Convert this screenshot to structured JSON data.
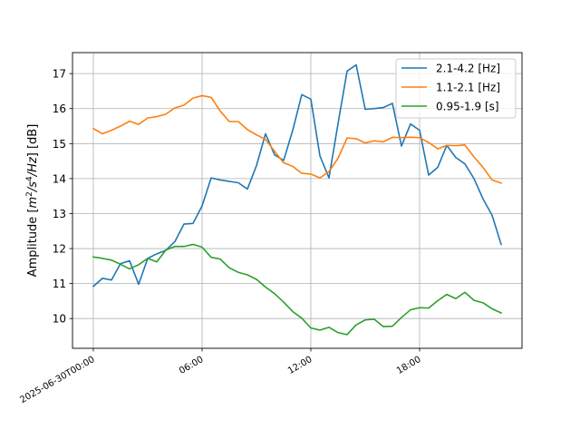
{
  "chart_data": {
    "type": "line",
    "xlabel": "",
    "ylabel_parts": {
      "prefix": "Amplitude [",
      "m": "m",
      "exp2": "2",
      "s": "/s",
      "exp4": "4",
      "hz": "/Hz",
      "suffix": "] [dB]"
    },
    "x_tick_labels": [
      "2025-06-30T00:00",
      "06:00",
      "12:00",
      "18:00"
    ],
    "x_tick_hours": [
      0,
      6,
      12,
      18
    ],
    "ylim": [
      9.15,
      17.6
    ],
    "y_ticks": [
      10,
      11,
      12,
      13,
      14,
      15,
      16,
      17
    ],
    "xlim_hours": [
      -1.15,
      23.65
    ],
    "grid": true,
    "legend_position": "upper right",
    "x_hours": [
      0,
      0.5,
      1,
      1.5,
      2,
      2.5,
      3,
      3.5,
      4,
      4.5,
      5,
      5.5,
      6,
      6.5,
      7,
      7.5,
      8,
      8.5,
      9,
      9.5,
      10,
      10.5,
      11,
      11.5,
      12,
      12.5,
      13,
      13.5,
      14,
      14.5,
      15,
      15.5,
      16,
      16.5,
      17,
      17.5,
      18,
      18.5,
      19,
      19.5,
      20,
      20.5,
      21,
      21.5,
      22,
      22.5
    ],
    "series": [
      {
        "name": "2.1-4.2 [Hz]",
        "color": "#1f77b4",
        "values": [
          10.92,
          11.15,
          11.1,
          11.57,
          11.65,
          10.98,
          11.72,
          11.85,
          11.95,
          12.2,
          12.7,
          12.72,
          13.22,
          14.02,
          13.96,
          13.92,
          13.88,
          13.7,
          14.37,
          15.28,
          14.68,
          14.52,
          15.38,
          16.4,
          16.27,
          14.65,
          14.02,
          15.57,
          17.07,
          17.25,
          15.98,
          16.0,
          16.03,
          16.15,
          14.93,
          15.56,
          15.38,
          14.1,
          14.32,
          14.95,
          14.6,
          14.42,
          14.0,
          13.42,
          12.95,
          12.12
        ]
      },
      {
        "name": "1.1-2.1 [Hz]",
        "color": "#ff7f0e",
        "values": [
          15.43,
          15.28,
          15.38,
          15.5,
          15.64,
          15.55,
          15.73,
          15.77,
          15.84,
          16.02,
          16.1,
          16.3,
          16.37,
          16.32,
          15.93,
          15.63,
          15.63,
          15.4,
          15.25,
          15.12,
          14.78,
          14.45,
          14.35,
          14.15,
          14.13,
          14.02,
          14.2,
          14.58,
          15.16,
          15.14,
          15.02,
          15.08,
          15.05,
          15.18,
          15.17,
          15.18,
          15.17,
          15.03,
          14.85,
          14.95,
          14.94,
          14.96,
          14.62,
          14.32,
          13.96,
          13.87
        ]
      },
      {
        "name": "0.95-1.9 [s]",
        "color": "#2ca02c",
        "values": [
          11.76,
          11.72,
          11.67,
          11.55,
          11.42,
          11.54,
          11.72,
          11.62,
          11.96,
          12.06,
          12.06,
          12.12,
          12.04,
          11.75,
          11.7,
          11.45,
          11.32,
          11.25,
          11.12,
          10.9,
          10.71,
          10.47,
          10.2,
          10.01,
          9.73,
          9.67,
          9.75,
          9.6,
          9.54,
          9.82,
          9.96,
          9.98,
          9.77,
          9.78,
          10.03,
          10.25,
          10.31,
          10.3,
          10.51,
          10.69,
          10.57,
          10.75,
          10.52,
          10.45,
          10.28,
          10.16
        ]
      }
    ]
  }
}
